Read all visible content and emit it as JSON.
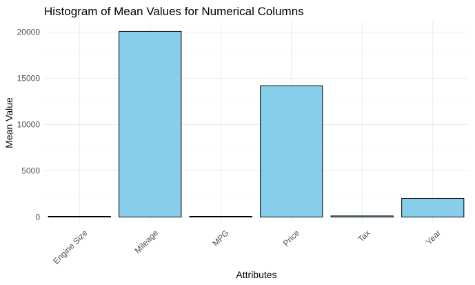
{
  "chart_data": {
    "type": "bar",
    "title": "Histogram of Mean Values for Numerical Columns",
    "xlabel": "Attributes",
    "ylabel": "Mean Value",
    "categories": [
      "Engine Size",
      "Mileage",
      "MPG",
      "Price",
      "Tax",
      "Year"
    ],
    "values": [
      1.6,
      20080,
      55,
      14200,
      120,
      2017
    ],
    "ylim": [
      0,
      21000
    ],
    "yticks": [
      0,
      5000,
      10000,
      15000,
      20000
    ],
    "grid": true,
    "legend": "none",
    "bar_color": "#87CEEB",
    "bar_edge_color": "#000000"
  }
}
